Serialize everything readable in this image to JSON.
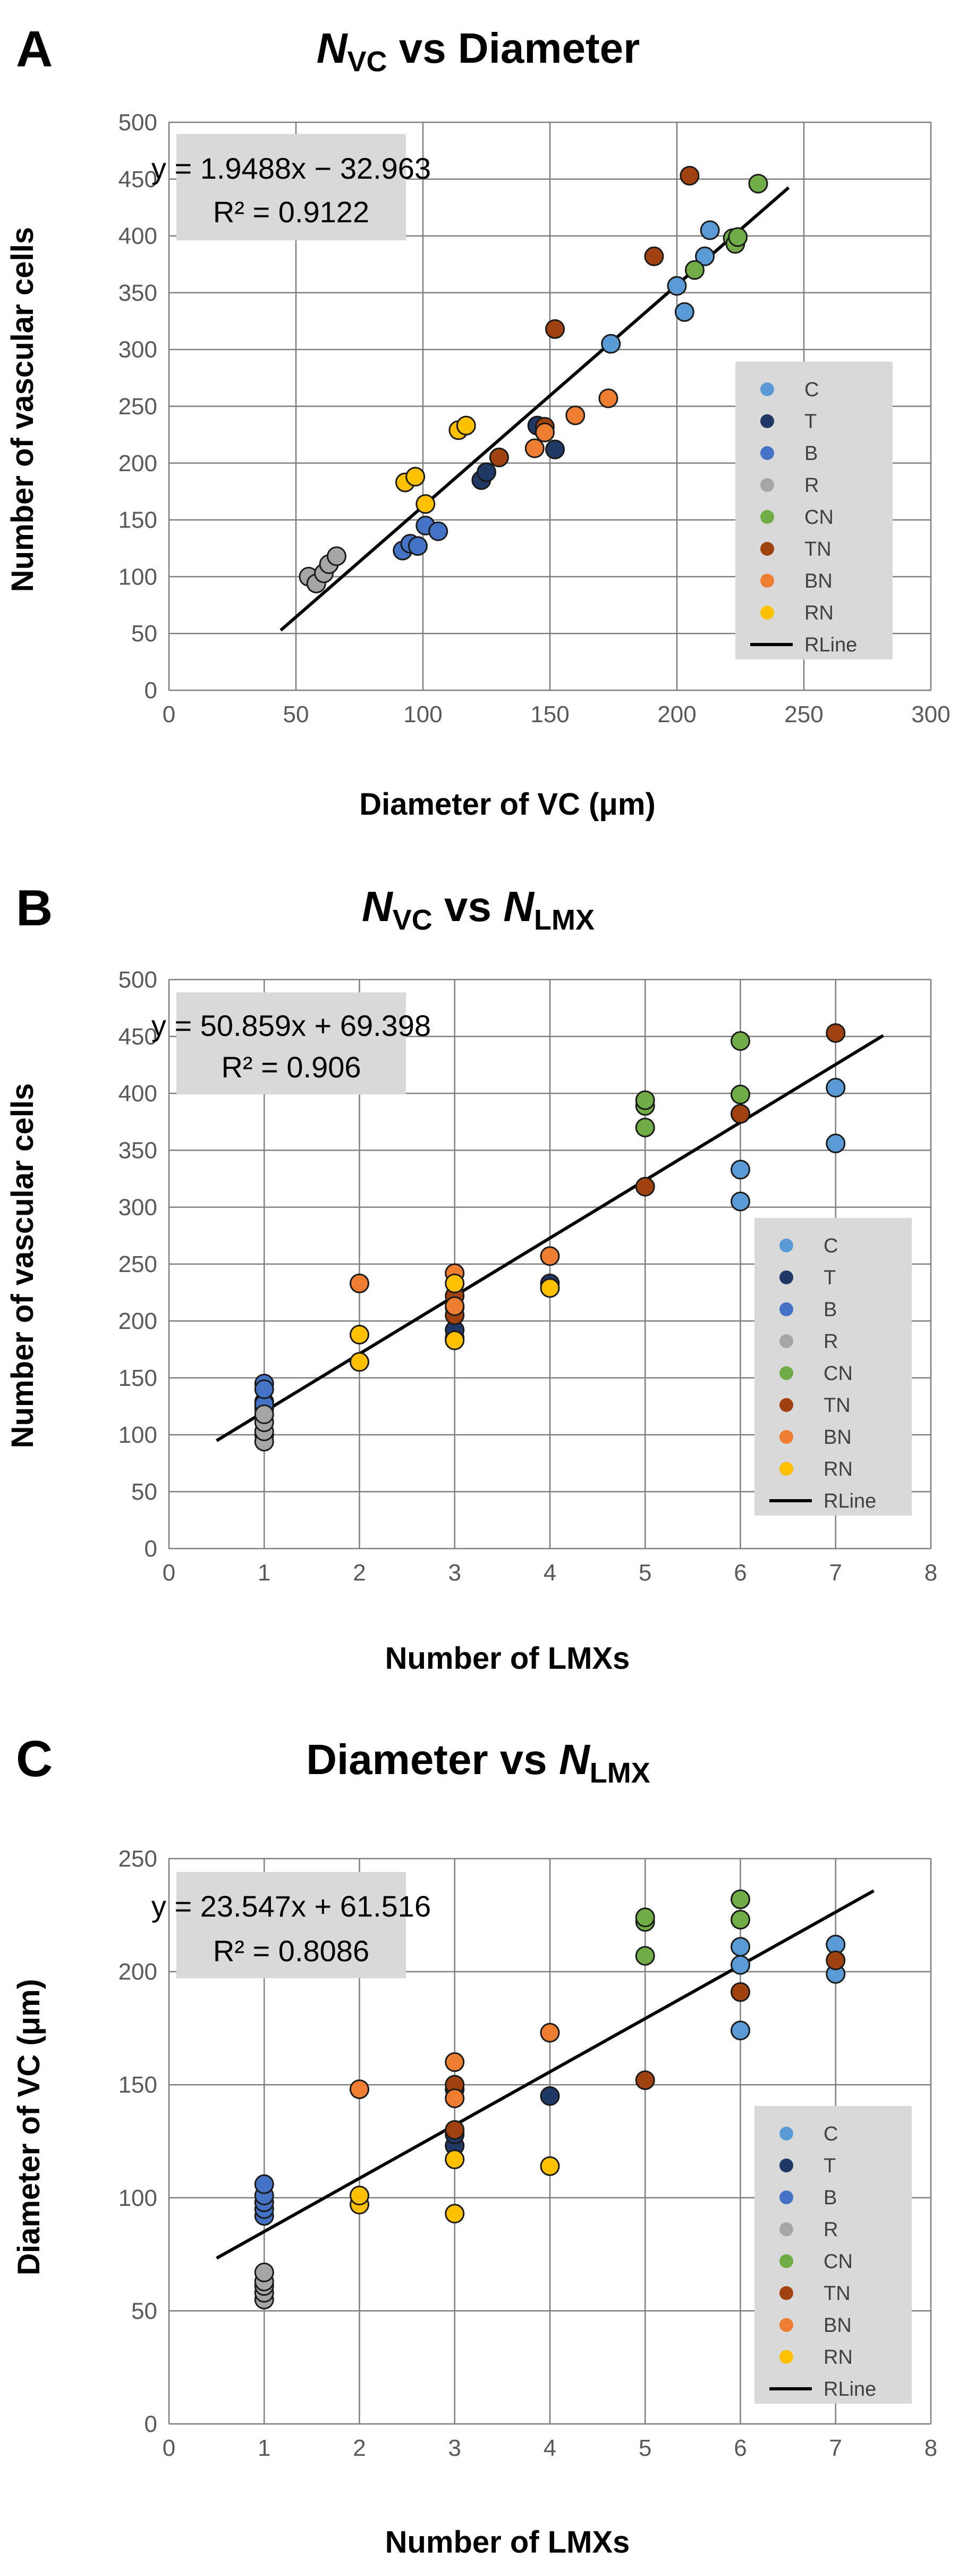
{
  "colors": {
    "C": "#5b9bd5",
    "T": "#203864",
    "B": "#4472c4",
    "R": "#a5a5a5",
    "CN": "#70ad47",
    "TN": "#a0420f",
    "BN": "#ed7d31",
    "RN": "#ffc000",
    "RLine": "#000000"
  },
  "legend_labels": [
    "C",
    "T",
    "B",
    "R",
    "CN",
    "TN",
    "BN",
    "RN",
    "RLine"
  ],
  "chart_data": [
    {
      "panel": "A",
      "type": "scatter",
      "title": {
        "pre_italic": "N",
        "sub": "VC",
        "post": " vs Diameter",
        "sub2": "",
        "tail": ""
      },
      "xlabel": "Diameter of VC (μm)",
      "ylabel": "Number of vascular cells",
      "xlim": [
        0,
        300
      ],
      "ylim": [
        0,
        500
      ],
      "xticks": [
        0,
        50,
        100,
        150,
        200,
        250,
        300
      ],
      "yticks": [
        0,
        50,
        100,
        150,
        200,
        250,
        300,
        350,
        400,
        450,
        500
      ],
      "grid": true,
      "legend_position": "lower-right",
      "equation": "y = 1.9488x − 32.963",
      "r2": "R² = 0.9122",
      "regression": {
        "slope": 1.9488,
        "intercept": -32.963,
        "x_range": [
          44,
          244
        ]
      },
      "series": [
        {
          "name": "C",
          "points": [
            [
              174,
              305
            ],
            [
              200,
              356
            ],
            [
              203,
              333
            ],
            [
              211,
              382
            ],
            [
              213,
              405
            ]
          ]
        },
        {
          "name": "T",
          "points": [
            [
              123,
              185
            ],
            [
              125,
              192
            ],
            [
              145,
              233
            ],
            [
              152,
              212
            ]
          ]
        },
        {
          "name": "B",
          "points": [
            [
              92,
              123
            ],
            [
              95,
              129
            ],
            [
              98,
              127
            ],
            [
              101,
              145
            ],
            [
              106,
              140
            ]
          ]
        },
        {
          "name": "R",
          "points": [
            [
              55,
              100
            ],
            [
              58,
              94
            ],
            [
              61,
              103
            ],
            [
              63,
              111
            ],
            [
              66,
              118
            ]
          ]
        },
        {
          "name": "CN",
          "points": [
            [
              207,
              370
            ],
            [
              222,
              398
            ],
            [
              223,
              393
            ],
            [
              224,
              399
            ],
            [
              232,
              446
            ]
          ]
        },
        {
          "name": "TN",
          "points": [
            [
              130,
              205
            ],
            [
              148,
              232
            ],
            [
              152,
              318
            ],
            [
              191,
              382
            ],
            [
              205,
              453
            ]
          ]
        },
        {
          "name": "BN",
          "points": [
            [
              144,
              213
            ],
            [
              148,
              227
            ],
            [
              160,
              242
            ],
            [
              173,
              257
            ]
          ]
        },
        {
          "name": "RN",
          "points": [
            [
              93,
              183
            ],
            [
              97,
              188
            ],
            [
              101,
              164
            ],
            [
              114,
              229
            ],
            [
              117,
              233
            ]
          ]
        }
      ]
    },
    {
      "panel": "B",
      "type": "scatter",
      "title": {
        "pre_italic": "N",
        "sub": "VC",
        "post": " vs ",
        "sub2": "LMX",
        "tail": "N"
      },
      "xlabel": "Number of LMXs",
      "ylabel": "Number of vascular cells",
      "xlim": [
        0,
        8
      ],
      "ylim": [
        0,
        500
      ],
      "xticks": [
        0,
        1,
        2,
        3,
        4,
        5,
        6,
        7,
        8
      ],
      "yticks": [
        0,
        50,
        100,
        150,
        200,
        250,
        300,
        350,
        400,
        450,
        500
      ],
      "grid": true,
      "legend_position": "lower-right",
      "equation": "y = 50.859x + 69.398",
      "r2": "R² = 0.906",
      "regression": {
        "slope": 50.859,
        "intercept": 69.398,
        "x_range": [
          0.5,
          7.5
        ]
      },
      "series": [
        {
          "name": "C",
          "points": [
            [
              6,
              305
            ],
            [
              6,
              333
            ],
            [
              7,
              356
            ],
            [
              6,
              382
            ],
            [
              7,
              405
            ]
          ]
        },
        {
          "name": "T",
          "points": [
            [
              3,
              185
            ],
            [
              3,
              192
            ],
            [
              4,
              233
            ],
            [
              3,
              212
            ]
          ]
        },
        {
          "name": "B",
          "points": [
            [
              1,
              123
            ],
            [
              1,
              129
            ],
            [
              1,
              127
            ],
            [
              1,
              145
            ],
            [
              1,
              140
            ]
          ]
        },
        {
          "name": "R",
          "points": [
            [
              1,
              100
            ],
            [
              1,
              94
            ],
            [
              1,
              103
            ],
            [
              1,
              111
            ],
            [
              1,
              118
            ]
          ]
        },
        {
          "name": "CN",
          "points": [
            [
              5,
              370
            ],
            [
              5,
              389
            ],
            [
              5,
              394
            ],
            [
              6,
              399
            ],
            [
              6,
              446
            ]
          ]
        },
        {
          "name": "TN",
          "points": [
            [
              3,
              205
            ],
            [
              3,
              222
            ],
            [
              5,
              318
            ],
            [
              6,
              382
            ],
            [
              7,
              453
            ]
          ]
        },
        {
          "name": "BN",
          "points": [
            [
              2,
              233
            ],
            [
              3,
              213
            ],
            [
              3,
              242
            ],
            [
              4,
              257
            ]
          ]
        },
        {
          "name": "RN",
          "points": [
            [
              3,
              183
            ],
            [
              2,
              188
            ],
            [
              2,
              164
            ],
            [
              4,
              229
            ],
            [
              3,
              233
            ]
          ]
        }
      ]
    },
    {
      "panel": "C",
      "type": "scatter",
      "title": {
        "pre_italic": "",
        "sub": "",
        "post": "Diameter vs ",
        "sub2": "LMX",
        "tail": "N"
      },
      "xlabel": "Number of LMXs",
      "ylabel": "Diameter of VC (μm)",
      "xlim": [
        0,
        8
      ],
      "ylim": [
        0,
        250
      ],
      "xticks": [
        0,
        1,
        2,
        3,
        4,
        5,
        6,
        7,
        8
      ],
      "yticks": [
        0,
        50,
        100,
        150,
        200,
        250
      ],
      "grid": true,
      "legend_position": "lower-right",
      "equation": "y = 23.547x + 61.516",
      "r2": "R² = 0.8086",
      "regression": {
        "slope": 23.547,
        "intercept": 61.516,
        "x_range": [
          0.5,
          7.4
        ]
      },
      "series": [
        {
          "name": "C",
          "points": [
            [
              6,
              174
            ],
            [
              6,
              203
            ],
            [
              6,
              211
            ],
            [
              7,
              199
            ],
            [
              7,
              212
            ]
          ]
        },
        {
          "name": "T",
          "points": [
            [
              3,
              123
            ],
            [
              3,
              128
            ],
            [
              4,
              145
            ],
            [
              3,
              148
            ]
          ]
        },
        {
          "name": "B",
          "points": [
            [
              1,
              92
            ],
            [
              1,
              95
            ],
            [
              1,
              98
            ],
            [
              1,
              101
            ],
            [
              1,
              106
            ]
          ]
        },
        {
          "name": "R",
          "points": [
            [
              1,
              55
            ],
            [
              1,
              58
            ],
            [
              1,
              61
            ],
            [
              1,
              63
            ],
            [
              1,
              67
            ]
          ]
        },
        {
          "name": "CN",
          "points": [
            [
              5,
              207
            ],
            [
              5,
              222
            ],
            [
              5,
              224
            ],
            [
              6,
              223
            ],
            [
              6,
              232
            ]
          ]
        },
        {
          "name": "TN",
          "points": [
            [
              3,
              130
            ],
            [
              3,
              150
            ],
            [
              5,
              152
            ],
            [
              6,
              191
            ],
            [
              7,
              205
            ]
          ]
        },
        {
          "name": "BN",
          "points": [
            [
              2,
              148
            ],
            [
              3,
              144
            ],
            [
              3,
              160
            ],
            [
              4,
              173
            ]
          ]
        },
        {
          "name": "RN",
          "points": [
            [
              3,
              93
            ],
            [
              2,
              97
            ],
            [
              2,
              101
            ],
            [
              4,
              114
            ],
            [
              3,
              117
            ]
          ]
        }
      ]
    }
  ]
}
